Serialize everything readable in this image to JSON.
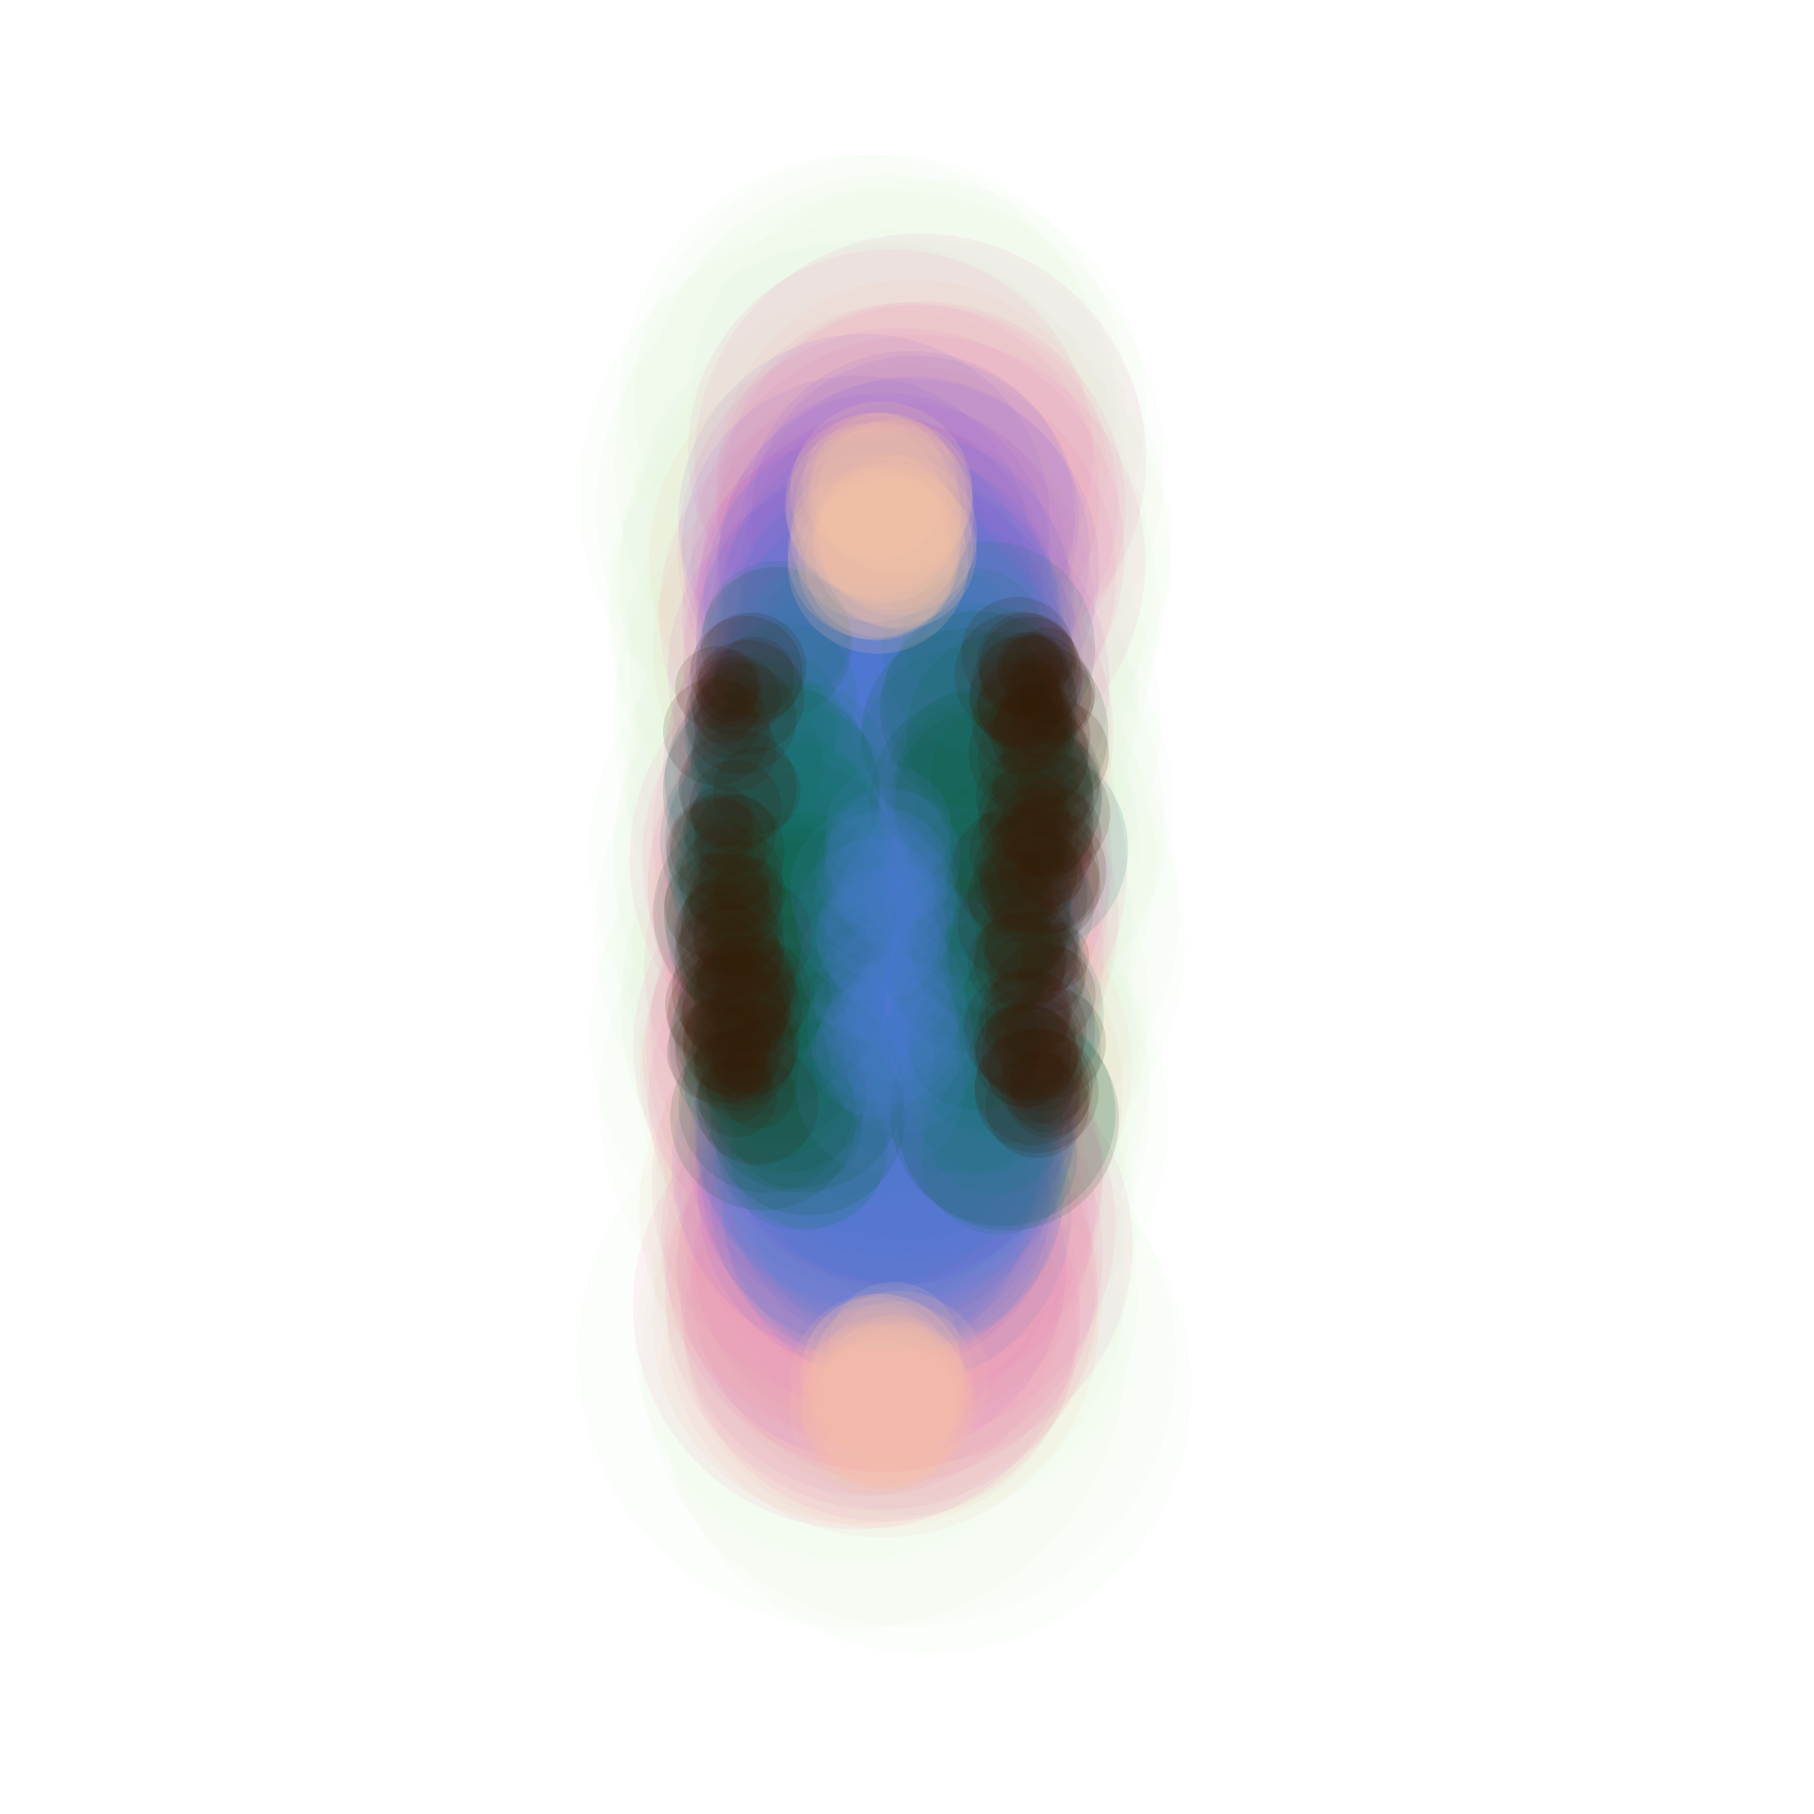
{
  "artwork": {
    "background": "#ffffff",
    "palette": {
      "outer_glow": "#e8f5e2",
      "pink": "#e88ab8",
      "magenta": "#cc66cc",
      "violet": "#8866dd",
      "blue": "#4a7fd4",
      "teal": "#1f7a78",
      "green": "#0f5a3a",
      "dark_brown": "#3a1a0a",
      "peach": "#f5c0a8"
    }
  }
}
